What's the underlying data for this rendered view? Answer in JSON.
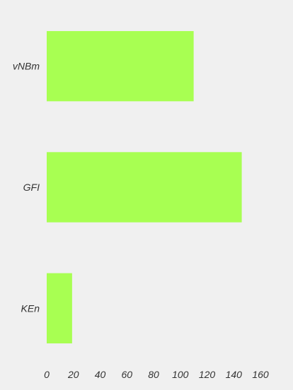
{
  "chart_data": {
    "type": "bar",
    "orientation": "horizontal",
    "categories": [
      "vNBm",
      "GFI",
      "KEn"
    ],
    "values": [
      110,
      146,
      19
    ],
    "xlim": [
      0,
      160
    ],
    "xticks": [
      0,
      20,
      40,
      60,
      80,
      100,
      120,
      140,
      160
    ],
    "bar_color": "#a8ff52",
    "background_color": "#f0f0f0",
    "grid": false,
    "title": "",
    "xlabel": "",
    "ylabel": ""
  }
}
